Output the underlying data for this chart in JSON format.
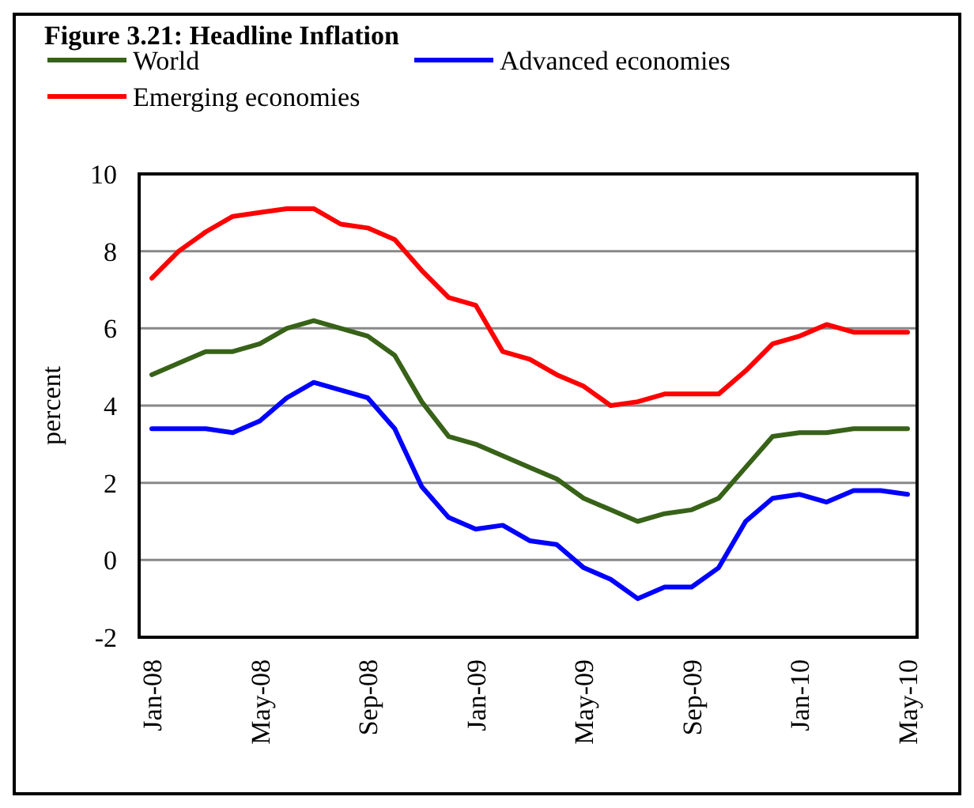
{
  "chart_data": {
    "type": "line",
    "title": "Figure 3.21: Headline Inflation",
    "ylabel": "percent",
    "categories": [
      "Jan-08",
      null,
      null,
      null,
      "May-08",
      null,
      null,
      null,
      "Sep-08",
      null,
      null,
      null,
      "Jan-09",
      null,
      null,
      null,
      "May-09",
      null,
      null,
      null,
      "Sep-09",
      null,
      null,
      null,
      "Jan-10",
      null,
      null,
      null,
      "May-10"
    ],
    "series": [
      {
        "name": "World",
        "color": "#376218",
        "values": [
          4.8,
          5.1,
          5.4,
          5.4,
          5.6,
          6.0,
          6.2,
          6.0,
          5.8,
          5.3,
          4.1,
          3.2,
          3.0,
          2.7,
          2.4,
          2.1,
          1.6,
          1.3,
          1.0,
          1.2,
          1.3,
          1.6,
          2.4,
          3.2,
          3.3,
          3.3,
          3.4,
          3.4,
          3.4
        ]
      },
      {
        "name": "Advanced economies",
        "color": "#0000ff",
        "values": [
          3.4,
          3.4,
          3.4,
          3.3,
          3.6,
          4.2,
          4.6,
          4.4,
          4.2,
          3.4,
          1.9,
          1.1,
          0.8,
          0.9,
          0.5,
          0.4,
          -0.2,
          -0.5,
          -1.0,
          -0.7,
          -0.7,
          -0.2,
          1.0,
          1.6,
          1.7,
          1.5,
          1.8,
          1.8,
          1.7
        ]
      },
      {
        "name": "Emerging economies",
        "color": "#ff0000",
        "values": [
          7.3,
          8.0,
          8.5,
          8.9,
          9.0,
          9.1,
          9.1,
          8.7,
          8.6,
          8.3,
          7.5,
          6.8,
          6.6,
          5.4,
          5.2,
          4.8,
          4.5,
          4.0,
          4.1,
          4.3,
          4.3,
          4.3,
          4.9,
          5.6,
          5.8,
          6.1,
          5.9,
          5.9,
          5.9
        ]
      }
    ],
    "ylim": [
      -2,
      10
    ],
    "yticks": [
      -2,
      0,
      2,
      4,
      6,
      8,
      10
    ],
    "grid": "y",
    "legend": "top",
    "marker": "none",
    "line_style": "solid"
  }
}
